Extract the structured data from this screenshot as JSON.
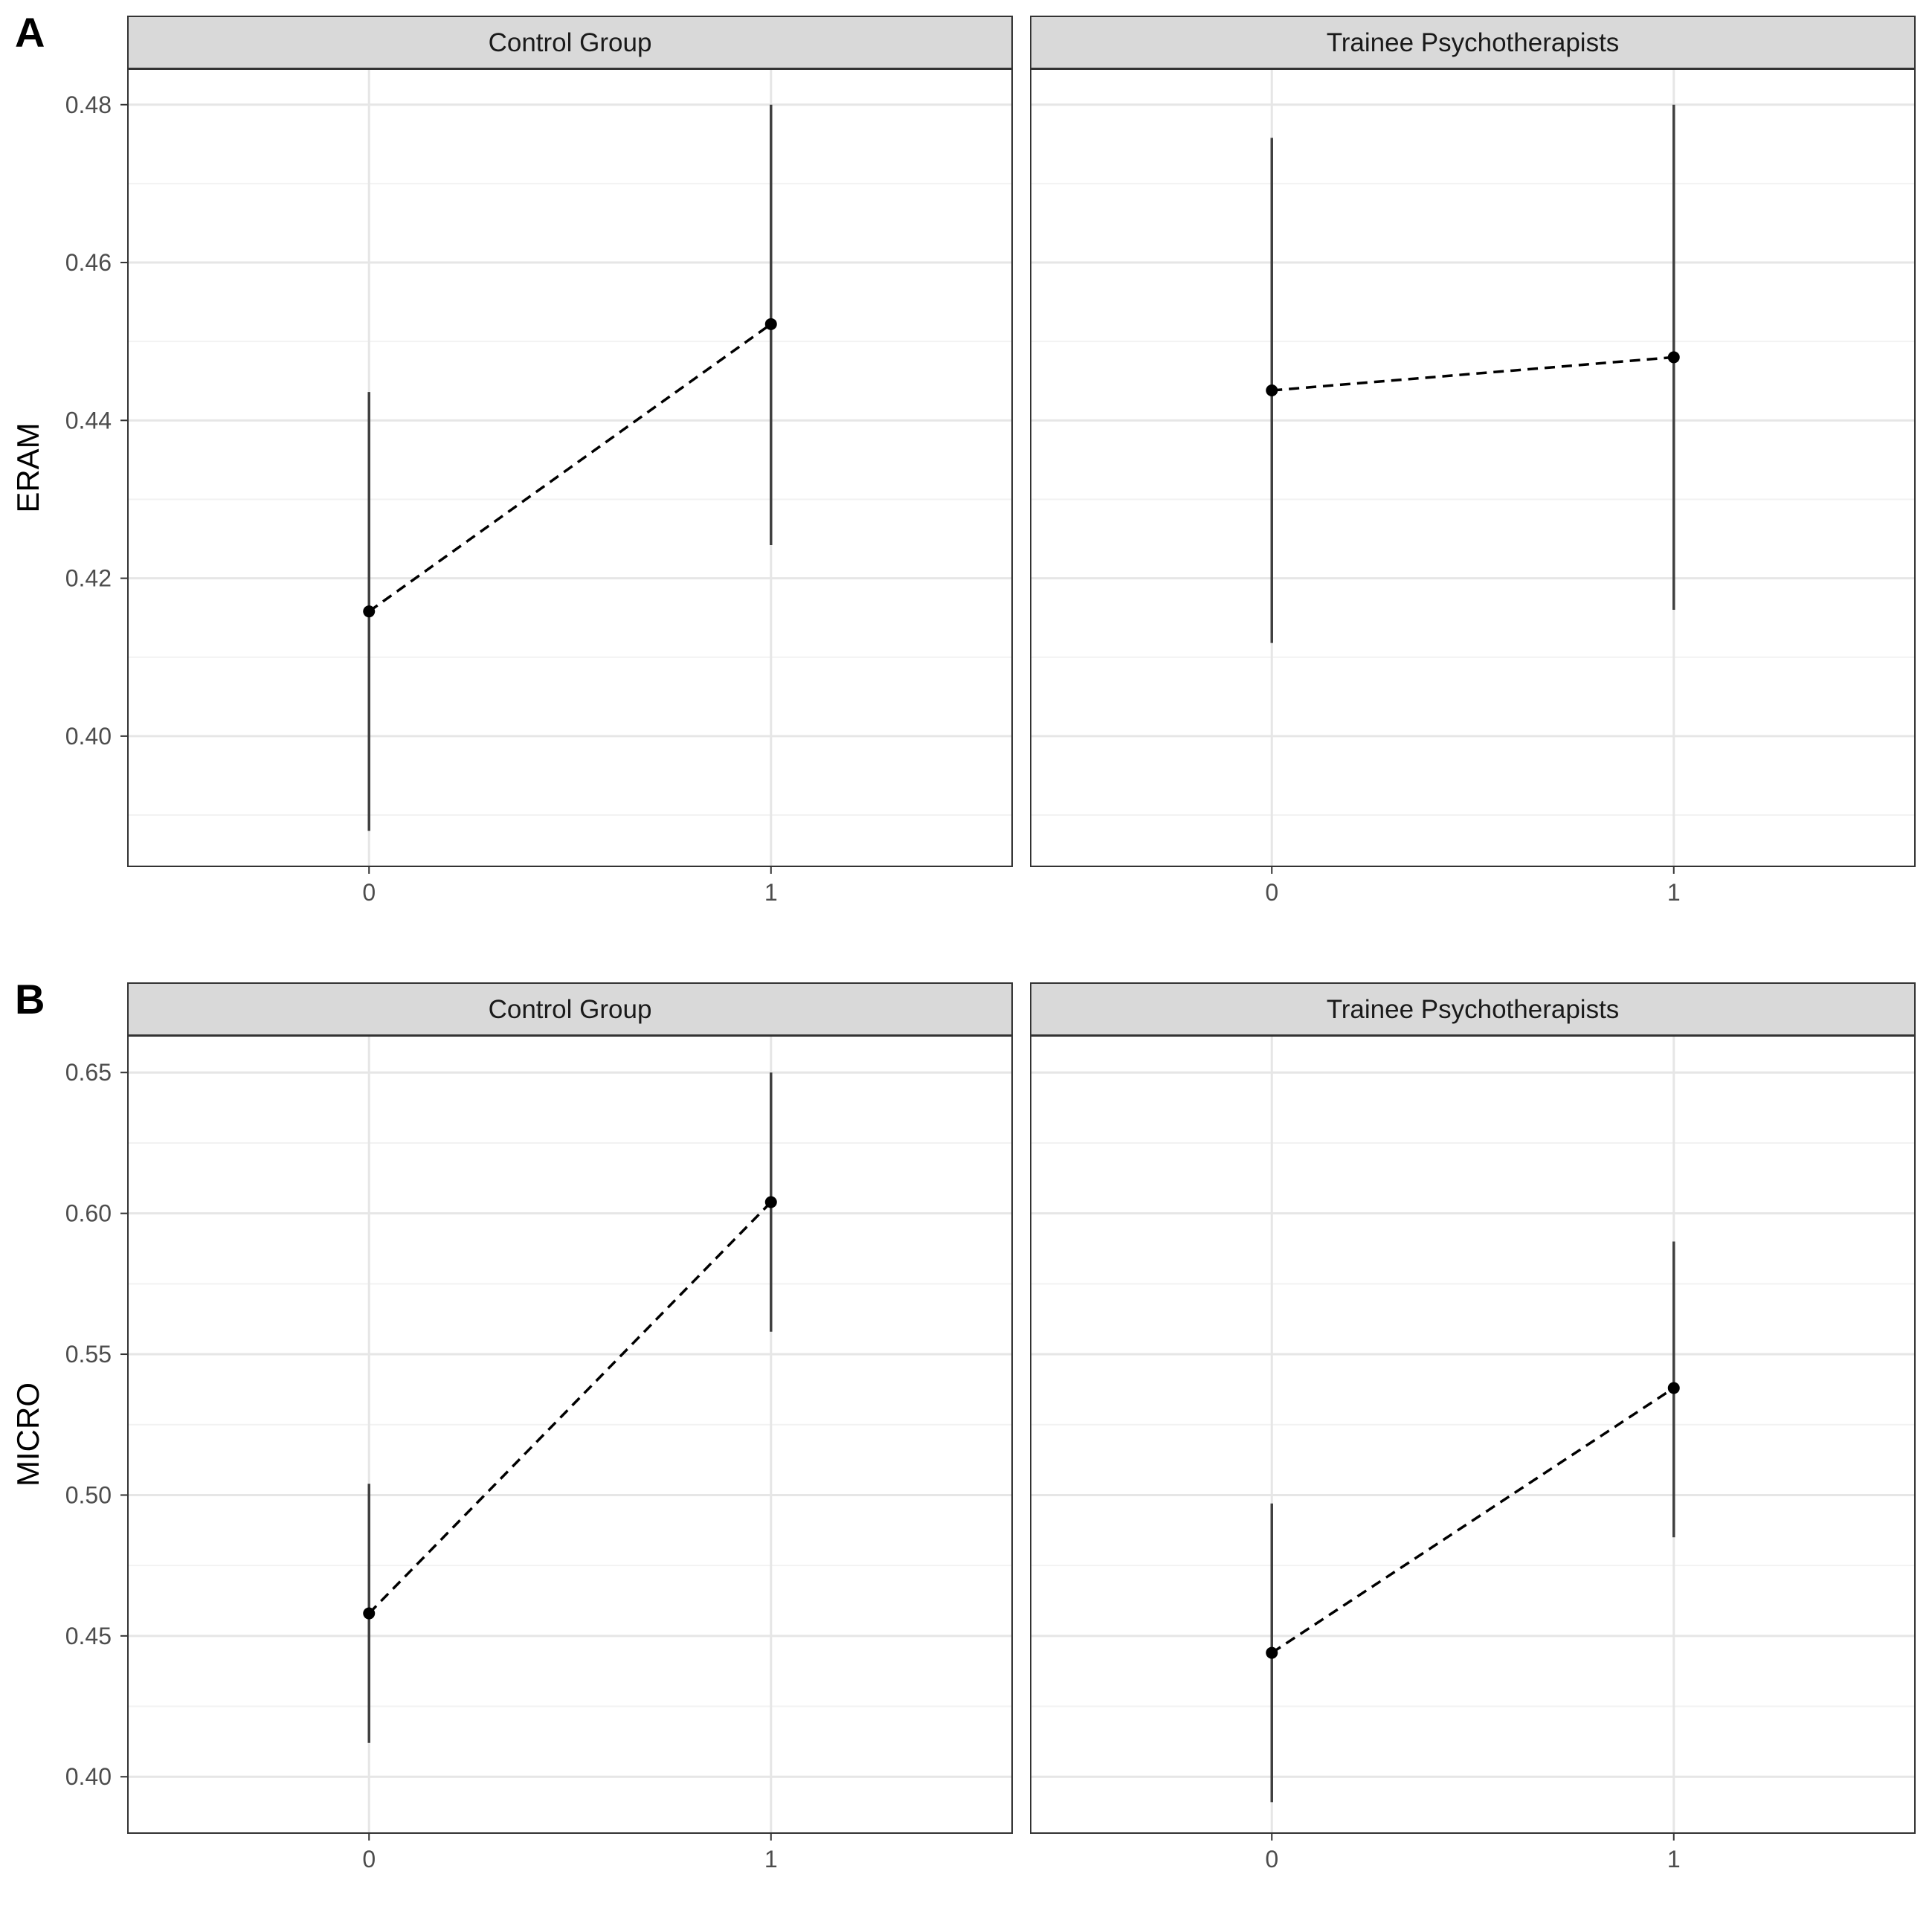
{
  "figure": {
    "colors": {
      "strip_background": "#d9d9d9",
      "panel_border": "#333333",
      "grid_major": "#e6e6e6",
      "grid_minor": "#f2f2f2",
      "errorbar": "#404040",
      "point": "#000000",
      "line": "#000000",
      "tick_label": "#4d4d4d"
    }
  },
  "chart_data": [
    {
      "type": "line",
      "panel_tag": "A",
      "ylabel": "ERAM",
      "xlabel": "",
      "x_categories": [
        "0",
        "1"
      ],
      "ylim": [
        0.3835,
        0.4845
      ],
      "y_ticks": [
        "0.40",
        "0.42",
        "0.44",
        "0.46",
        "0.48"
      ],
      "y_tick_values": [
        0.4,
        0.42,
        0.44,
        0.46,
        0.48
      ],
      "grid": true,
      "line_style": "dashed",
      "facets": [
        {
          "name": "Control Group",
          "points": [
            {
              "x": "0",
              "y": 0.4158,
              "ymin": 0.388,
              "ymax": 0.4436
            },
            {
              "x": "1",
              "y": 0.4522,
              "ymin": 0.4242,
              "ymax": 0.48
            }
          ]
        },
        {
          "name": "Trainee Psychotherapists",
          "points": [
            {
              "x": "0",
              "y": 0.4438,
              "ymin": 0.4118,
              "ymax": 0.4758
            },
            {
              "x": "1",
              "y": 0.448,
              "ymin": 0.416,
              "ymax": 0.48
            }
          ]
        }
      ]
    },
    {
      "type": "line",
      "panel_tag": "B",
      "ylabel": "MICRO",
      "xlabel": "",
      "x_categories": [
        "0",
        "1"
      ],
      "ylim": [
        0.38,
        0.663
      ],
      "y_ticks": [
        "0.40",
        "0.45",
        "0.50",
        "0.55",
        "0.60",
        "0.65"
      ],
      "y_tick_values": [
        0.4,
        0.45,
        0.5,
        0.55,
        0.6,
        0.65
      ],
      "grid": true,
      "line_style": "dashed",
      "facets": [
        {
          "name": "Control Group",
          "points": [
            {
              "x": "0",
              "y": 0.458,
              "ymin": 0.412,
              "ymax": 0.504
            },
            {
              "x": "1",
              "y": 0.604,
              "ymin": 0.558,
              "ymax": 0.65
            }
          ]
        },
        {
          "name": "Trainee Psychotherapists",
          "points": [
            {
              "x": "0",
              "y": 0.444,
              "ymin": 0.391,
              "ymax": 0.497
            },
            {
              "x": "1",
              "y": 0.538,
              "ymin": 0.485,
              "ymax": 0.59
            }
          ]
        }
      ]
    }
  ]
}
